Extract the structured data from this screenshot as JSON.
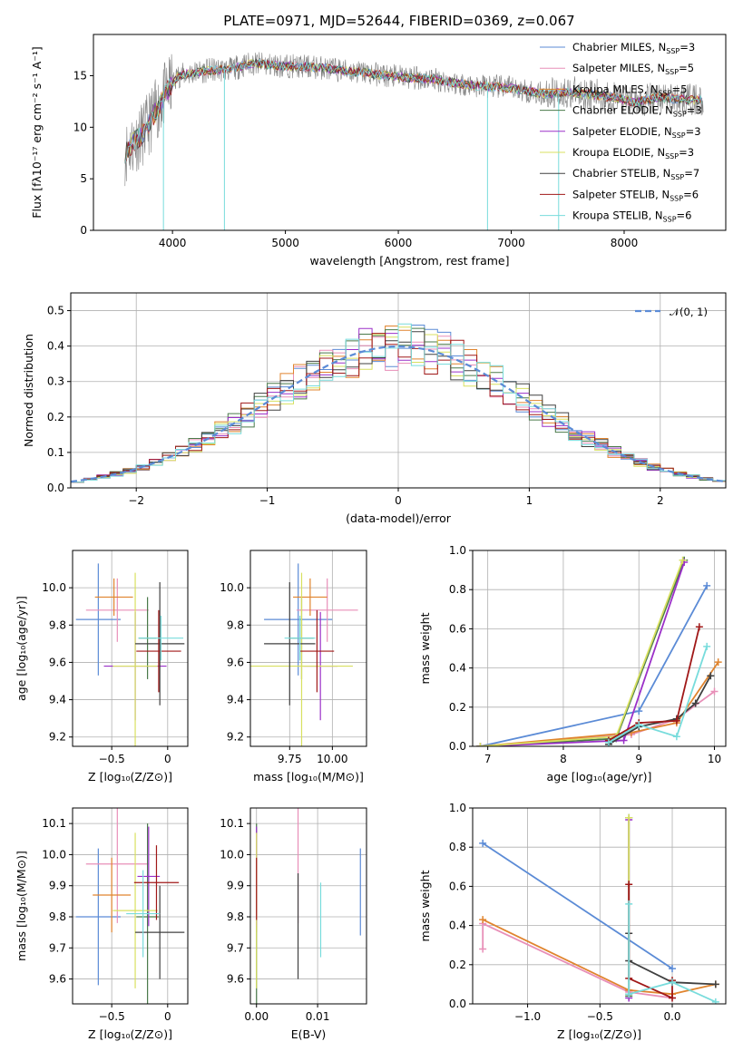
{
  "figure": {
    "title": "PLATE=0971, MJD=52644, FIBERID=0369, z=0.067"
  },
  "colors": {
    "grid": "#b0b0b0",
    "data": "#808080",
    "norm_curve": "#5b8bd6"
  },
  "chart_data": [
    {
      "id": "spectrum",
      "type": "line",
      "xlabel": "wavelength [Angstrom, rest frame]",
      "ylabel": "Flux [fλ10⁻¹⁷ erg cm⁻² s⁻¹ A⁻¹]",
      "xlim": [
        3300,
        8900
      ],
      "ylim": [
        0,
        19
      ],
      "xticks": [
        4000,
        5000,
        6000,
        7000,
        8000
      ],
      "yticks": [
        0,
        5,
        10,
        15
      ],
      "grid": false,
      "legend": "top-right",
      "series": [
        {
          "name": "Chabrier MILES, N",
          "sub": "SSP",
          "suffix": "=3",
          "color": "#5b8bd6"
        },
        {
          "name": "Salpeter MILES, N",
          "sub": "SSP",
          "suffix": "=5",
          "color": "#e88fb8"
        },
        {
          "name": "Kroupa MILES, N",
          "sub": "SSP",
          "suffix": "=5",
          "color": "#e0842e"
        },
        {
          "name": "Chabrier ELODIE, N",
          "sub": "SSP",
          "suffix": "=3",
          "color": "#4a7a4a"
        },
        {
          "name": "Salpeter ELODIE, N",
          "sub": "SSP",
          "suffix": "=3",
          "color": "#9b30c8"
        },
        {
          "name": "Kroupa ELODIE, N",
          "sub": "SSP",
          "suffix": "=3",
          "color": "#d8e060"
        },
        {
          "name": "Chabrier STELIB, N",
          "sub": "SSP",
          "suffix": "=7",
          "color": "#404040"
        },
        {
          "name": "Salpeter STELIB, N",
          "sub": "SSP",
          "suffix": "=6",
          "color": "#a01818"
        },
        {
          "name": "Kroupa STELIB, N",
          "sub": "SSP",
          "suffix": "=6",
          "color": "#78dcdc"
        }
      ],
      "model_flux": {
        "x": [
          3580,
          3650,
          3750,
          3850,
          3950,
          4050,
          4150,
          4300,
          4500,
          4700,
          4900,
          5100,
          5300,
          5500,
          5700,
          5900,
          6100,
          6300,
          6500,
          6700,
          6900,
          7100,
          7300,
          7500,
          7700,
          7900,
          8100,
          8300,
          8500,
          8700
        ],
        "y": [
          7.5,
          8.5,
          9.5,
          11.5,
          13.5,
          15.0,
          15.2,
          15.5,
          15.6,
          16.2,
          16.0,
          15.9,
          15.8,
          15.5,
          15.3,
          15.0,
          14.8,
          14.7,
          14.3,
          14.0,
          13.9,
          13.6,
          13.2,
          13.4,
          13.2,
          12.9,
          12.4,
          12.9,
          12.7,
          12.6
        ]
      },
      "sharp_dips": [
        {
          "x": 3920,
          "y": 0.0
        },
        {
          "x": 4460,
          "y": 0.0
        },
        {
          "x": 6790,
          "y": 0.0
        },
        {
          "x": 7420,
          "y": 0.0
        }
      ]
    },
    {
      "id": "residuals",
      "type": "area",
      "xlabel": "(data-model)/error",
      "ylabel": "Normed distribution",
      "xlim": [
        -2.5,
        2.5
      ],
      "ylim": [
        0,
        0.55
      ],
      "xticks": [
        -2,
        -1,
        0,
        1,
        2
      ],
      "yticks": [
        0.0,
        0.1,
        0.2,
        0.3,
        0.4,
        0.5
      ],
      "grid": true,
      "legend": "top-right",
      "reference_label": "𝒩(0, 1)",
      "bin_width": 0.1
    },
    {
      "id": "age_vs_Z",
      "type": "scatter",
      "xlabel": "Z [log₁₀(Z/Z⊙)]",
      "ylabel": "age  [log₁₀(age/yr)]",
      "xlim": [
        -0.85,
        0.18
      ],
      "ylim": [
        9.15,
        10.2
      ],
      "xticks": [
        -0.5,
        0.0
      ],
      "yticks": [
        9.2,
        9.4,
        9.6,
        9.8,
        10.0
      ],
      "grid": true,
      "points": [
        {
          "x": -0.62,
          "y": 9.83,
          "xerr": 0.2,
          "yerr": 0.3,
          "color": "#5b8bd6"
        },
        {
          "x": -0.45,
          "y": 9.88,
          "xerr": 0.28,
          "yerr": 0.17,
          "color": "#e88fb8"
        },
        {
          "x": -0.48,
          "y": 9.95,
          "xerr": 0.17,
          "yerr": 0.1,
          "color": "#e0842e"
        },
        {
          "x": -0.18,
          "y": 9.73,
          "xerr": 0.08,
          "yerr": 0.22,
          "color": "#4a7a4a"
        },
        {
          "x": -0.29,
          "y": 9.58,
          "xerr": 0.28,
          "yerr": 0.29,
          "color": "#9b30c8"
        },
        {
          "x": -0.29,
          "y": 9.58,
          "xerr": 0.2,
          "yerr": 0.5,
          "color": "#d8e060"
        },
        {
          "x": -0.07,
          "y": 9.7,
          "xerr": 0.22,
          "yerr": 0.33,
          "color": "#404040"
        },
        {
          "x": -0.08,
          "y": 9.66,
          "xerr": 0.2,
          "yerr": 0.22,
          "color": "#a01818"
        },
        {
          "x": -0.06,
          "y": 9.73,
          "xerr": 0.2,
          "yerr": 0.12,
          "color": "#78dcdc"
        }
      ]
    },
    {
      "id": "age_vs_mass",
      "type": "scatter",
      "xlabel": "mass [log₁₀(M/M⊙)]",
      "ylabel": "",
      "xlim": [
        9.52,
        10.2
      ],
      "ylim": [
        9.15,
        10.2
      ],
      "xticks": [
        9.75,
        10.0
      ],
      "yticks": [
        9.2,
        9.4,
        9.6,
        9.8,
        10.0
      ],
      "grid": true,
      "points": [
        {
          "x": 9.8,
          "y": 9.83,
          "xerr": 0.2,
          "yerr": 0.3,
          "color": "#5b8bd6"
        },
        {
          "x": 9.97,
          "y": 9.88,
          "xerr": 0.18,
          "yerr": 0.17,
          "color": "#e88fb8"
        },
        {
          "x": 9.87,
          "y": 9.95,
          "xerr": 0.1,
          "yerr": 0.1,
          "color": "#e0842e"
        },
        {
          "x": 9.82,
          "y": 9.73,
          "xerr": 0.07,
          "yerr": 0.22,
          "color": "#4a7a4a"
        },
        {
          "x": 9.93,
          "y": 9.58,
          "xerr": 0.1,
          "yerr": 0.29,
          "color": "#9b30c8"
        },
        {
          "x": 9.82,
          "y": 9.58,
          "xerr": 0.3,
          "yerr": 0.5,
          "color": "#d8e060"
        },
        {
          "x": 9.75,
          "y": 9.7,
          "xerr": 0.15,
          "yerr": 0.33,
          "color": "#404040"
        },
        {
          "x": 9.91,
          "y": 9.66,
          "xerr": 0.1,
          "yerr": 0.22,
          "color": "#a01818"
        },
        {
          "x": 9.81,
          "y": 9.73,
          "xerr": 0.09,
          "yerr": 0.12,
          "color": "#78dcdc"
        }
      ]
    },
    {
      "id": "mass_weight_vs_age",
      "type": "line",
      "xlabel": "age  [log₁₀(age/yr)]",
      "ylabel": "mass weight",
      "xlim": [
        6.8,
        10.15
      ],
      "ylim": [
        0,
        1.0
      ],
      "xticks": [
        7,
        8,
        9,
        10
      ],
      "yticks": [
        0.0,
        0.2,
        0.4,
        0.6,
        0.8,
        1.0
      ],
      "grid": true,
      "series": [
        {
          "color": "#5b8bd6",
          "x": [
            6.9,
            9.0,
            9.9
          ],
          "y": [
            0.0,
            0.18,
            0.82
          ]
        },
        {
          "color": "#e88fb8",
          "x": [
            6.9,
            8.9,
            9.5,
            10.0
          ],
          "y": [
            0.0,
            0.06,
            0.14,
            0.28
          ]
        },
        {
          "color": "#e0842e",
          "x": [
            6.9,
            8.9,
            9.5,
            10.05
          ],
          "y": [
            0.0,
            0.07,
            0.12,
            0.43
          ]
        },
        {
          "color": "#4a7a4a",
          "x": [
            6.9,
            8.7,
            9.6
          ],
          "y": [
            0.0,
            0.04,
            0.95
          ]
        },
        {
          "color": "#9b30c8",
          "x": [
            6.9,
            8.8,
            9.6
          ],
          "y": [
            0.0,
            0.03,
            0.94
          ]
        },
        {
          "color": "#d8e060",
          "x": [
            6.9,
            8.7,
            9.58
          ],
          "y": [
            0.0,
            0.05,
            0.95
          ]
        },
        {
          "color": "#404040",
          "x": [
            8.6,
            9.0,
            9.5,
            9.75,
            9.95
          ],
          "y": [
            0.01,
            0.1,
            0.14,
            0.22,
            0.36
          ]
        },
        {
          "color": "#a01818",
          "x": [
            8.6,
            9.0,
            9.5,
            9.8
          ],
          "y": [
            0.03,
            0.12,
            0.13,
            0.61
          ]
        },
        {
          "color": "#78dcdc",
          "x": [
            8.6,
            9.0,
            9.5,
            9.9
          ],
          "y": [
            0.02,
            0.11,
            0.05,
            0.51
          ]
        }
      ]
    },
    {
      "id": "mass_vs_Z",
      "type": "scatter",
      "xlabel": "Z [log₁₀(Z/Z⊙)]",
      "ylabel": "mass [log₁₀(M/M⊙)]",
      "xlim": [
        -0.85,
        0.18
      ],
      "ylim": [
        9.52,
        10.15
      ],
      "xticks": [
        -0.5,
        0.0
      ],
      "yticks": [
        9.6,
        9.7,
        9.8,
        9.9,
        10.0,
        10.1
      ],
      "grid": true,
      "points": [
        {
          "x": -0.62,
          "y": 9.8,
          "xerr": 0.2,
          "yerr": 0.22,
          "color": "#5b8bd6"
        },
        {
          "x": -0.45,
          "y": 9.97,
          "xerr": 0.28,
          "yerr": 0.19,
          "color": "#e88fb8"
        },
        {
          "x": -0.5,
          "y": 9.87,
          "xerr": 0.17,
          "yerr": 0.12,
          "color": "#e0842e"
        },
        {
          "x": -0.18,
          "y": 9.8,
          "xerr": 0.1,
          "yerr": 0.3,
          "color": "#4a7a4a"
        },
        {
          "x": -0.17,
          "y": 9.93,
          "xerr": 0.1,
          "yerr": 0.16,
          "color": "#9b30c8"
        },
        {
          "x": -0.29,
          "y": 9.82,
          "xerr": 0.2,
          "yerr": 0.25,
          "color": "#d8e060"
        },
        {
          "x": -0.07,
          "y": 9.75,
          "xerr": 0.22,
          "yerr": 0.15,
          "color": "#404040"
        },
        {
          "x": -0.1,
          "y": 9.91,
          "xerr": 0.2,
          "yerr": 0.12,
          "color": "#a01818"
        },
        {
          "x": -0.22,
          "y": 9.81,
          "xerr": 0.15,
          "yerr": 0.14,
          "color": "#78dcdc"
        }
      ]
    },
    {
      "id": "mass_vs_ebv",
      "type": "scatter",
      "xlabel": "E(B-V)",
      "ylabel": "",
      "xlim": [
        -0.001,
        0.018
      ],
      "ylim": [
        9.52,
        10.15
      ],
      "xticks": [
        0.0,
        0.01
      ],
      "tick_labels": [
        "0.00",
        "0.01"
      ],
      "yticks": [
        9.6,
        9.7,
        9.8,
        9.9,
        10.0,
        10.1
      ],
      "grid": true,
      "points": [
        {
          "x": 0.017,
          "y": 9.88,
          "xerr": 0,
          "yerr": 0.14,
          "color": "#5b8bd6"
        },
        {
          "x": 0.0068,
          "y": 9.97,
          "xerr": 0,
          "yerr": 0.19,
          "color": "#e88fb8"
        },
        {
          "x": 0.0,
          "y": 9.87,
          "xerr": 0,
          "yerr": 0.12,
          "color": "#e0842e"
        },
        {
          "x": 0.0,
          "y": 9.8,
          "xerr": 0,
          "yerr": 0.3,
          "color": "#4a7a4a"
        },
        {
          "x": 0.0,
          "y": 9.93,
          "xerr": 0,
          "yerr": 0.16,
          "color": "#9b30c8"
        },
        {
          "x": 0.0,
          "y": 9.82,
          "xerr": 0,
          "yerr": 0.25,
          "color": "#d8e060"
        },
        {
          "x": 0.0068,
          "y": 9.77,
          "xerr": 0,
          "yerr": 0.17,
          "color": "#404040"
        },
        {
          "x": 0.0,
          "y": 9.89,
          "xerr": 0,
          "yerr": 0.1,
          "color": "#a01818"
        },
        {
          "x": 0.0105,
          "y": 9.79,
          "xerr": 0,
          "yerr": 0.12,
          "color": "#78dcdc"
        }
      ]
    },
    {
      "id": "mass_weight_vs_Z",
      "type": "line",
      "xlabel": "Z [log₁₀(Z/Z⊙)]",
      "ylabel": "mass weight",
      "xlim": [
        -1.38,
        0.37
      ],
      "ylim": [
        0,
        1.0
      ],
      "xticks": [
        -1.0,
        -0.5,
        0.0
      ],
      "yticks": [
        0.0,
        0.2,
        0.4,
        0.6,
        0.8,
        1.0
      ],
      "grid": true,
      "series": [
        {
          "color": "#5b8bd6",
          "x": [
            -1.31,
            0.0
          ],
          "y": [
            0.82,
            0.18
          ]
        },
        {
          "color": "#e88fb8",
          "x": [
            -1.31,
            -1.31,
            -0.3,
            0.0
          ],
          "y": [
            0.28,
            0.41,
            0.06,
            0.03
          ]
        },
        {
          "color": "#e0842e",
          "x": [
            -1.31,
            -0.3,
            0.0,
            0.3
          ],
          "y": [
            0.43,
            0.07,
            0.05,
            0.1
          ]
        },
        {
          "color": "#4a7a4a",
          "x": [
            -0.3,
            -0.3
          ],
          "y": [
            0.04,
            0.95
          ]
        },
        {
          "color": "#9b30c8",
          "x": [
            -0.3,
            -0.3
          ],
          "y": [
            0.03,
            0.94
          ]
        },
        {
          "color": "#d8e060",
          "x": [
            -0.3,
            -0.3
          ],
          "y": [
            0.05,
            0.95
          ]
        },
        {
          "color": "#404040",
          "x": [
            -0.3,
            -0.3,
            0.0,
            0.3
          ],
          "y": [
            0.36,
            0.22,
            0.11,
            0.1
          ]
        },
        {
          "color": "#a01818",
          "x": [
            -0.3,
            -0.3,
            0.0,
            0.0
          ],
          "y": [
            0.61,
            0.13,
            0.03,
            0.12
          ]
        },
        {
          "color": "#78dcdc",
          "x": [
            -0.3,
            -0.3,
            0.0,
            0.3
          ],
          "y": [
            0.51,
            0.05,
            0.11,
            0.01
          ]
        }
      ]
    }
  ]
}
